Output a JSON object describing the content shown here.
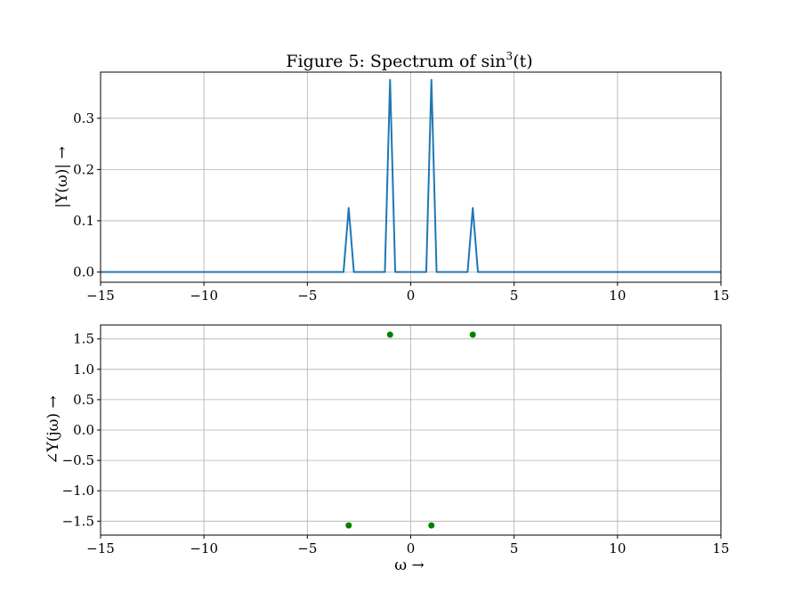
{
  "chart_data": [
    {
      "type": "line",
      "title_main": "Figure 5: Spectrum of sin",
      "title_sup": "3",
      "title_tail": "(t)",
      "ylabel": "|Y(ω)| →",
      "xlabel": "",
      "xlim": [
        -15,
        15
      ],
      "ylim": [
        -0.02,
        0.39
      ],
      "xticks": [
        -15,
        -10,
        -5,
        0,
        5,
        10,
        15
      ],
      "xtick_labels": [
        "−15",
        "−10",
        "−5",
        "0",
        "5",
        "10",
        "15"
      ],
      "yticks": [
        0.0,
        0.1,
        0.2,
        0.3
      ],
      "ytick_labels": [
        "0.0",
        "0.1",
        "0.2",
        "0.3"
      ],
      "grid": true,
      "color": "#1f77b4",
      "series": [
        {
          "x": [
            -15,
            -3.25,
            -3.0,
            -2.75,
            -1.25,
            -1.0,
            -0.75,
            0.75,
            1.0,
            1.25,
            2.75,
            3.0,
            3.25,
            15
          ],
          "values": [
            0,
            0,
            0.125,
            0,
            0,
            0.375,
            0,
            0,
            0.375,
            0,
            0,
            0.125,
            0,
            0
          ]
        }
      ]
    },
    {
      "type": "scatter",
      "ylabel": "∠Y(jω) →",
      "xlabel": "ω →",
      "xlim": [
        -15,
        15
      ],
      "ylim": [
        -1.73,
        1.73
      ],
      "xticks": [
        -15,
        -10,
        -5,
        0,
        5,
        10,
        15
      ],
      "xtick_labels": [
        "−15",
        "−10",
        "−5",
        "0",
        "5",
        "10",
        "15"
      ],
      "yticks": [
        1.5,
        1.0,
        0.5,
        0.0,
        -0.5,
        -1.0,
        -1.5
      ],
      "ytick_labels": [
        "1.5",
        "1.0",
        "0.5",
        "0.0",
        "−0.5",
        "−1.0",
        "−1.5"
      ],
      "grid": true,
      "color": "#008000",
      "series": [
        {
          "x": [
            -3,
            -1,
            1,
            3
          ],
          "values": [
            -1.5708,
            1.5708,
            -1.5708,
            1.5708
          ]
        }
      ]
    }
  ]
}
